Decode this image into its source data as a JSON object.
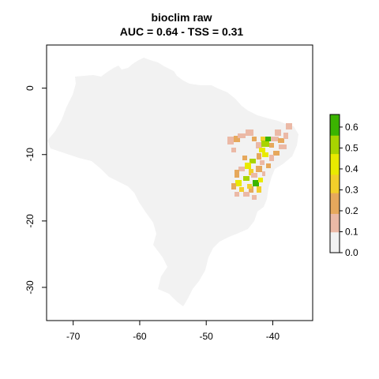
{
  "title": "bioclim raw",
  "subtitle": "AUC = 0.64 - TSS = 0.31",
  "map": {
    "x_ticks": [
      "-70",
      "-60",
      "-50",
      "-40"
    ],
    "y_ticks": [
      "0",
      "-10",
      "-20",
      "-30"
    ],
    "x_tick_values": [
      -70,
      -60,
      -50,
      -40
    ],
    "y_tick_values": [
      0,
      -10,
      -20,
      -30
    ],
    "xlim": [
      -74,
      -34
    ],
    "ylim": [
      -35,
      6.5
    ],
    "background_color": "#f2f2f2"
  },
  "legend": {
    "tick_labels": [
      "0.0",
      "0.1",
      "0.2",
      "0.3",
      "0.4",
      "0.5",
      "0.6"
    ],
    "tick_values": [
      0.0,
      0.1,
      0.2,
      0.3,
      0.4,
      0.5,
      0.6
    ],
    "range": [
      0,
      0.66
    ],
    "colors": [
      "#f2f2f2",
      "#ebb9a6",
      "#e6a85c",
      "#f2cf2a",
      "#e9ea00",
      "#a8d400",
      "#3bb400",
      "#00a600"
    ]
  }
}
